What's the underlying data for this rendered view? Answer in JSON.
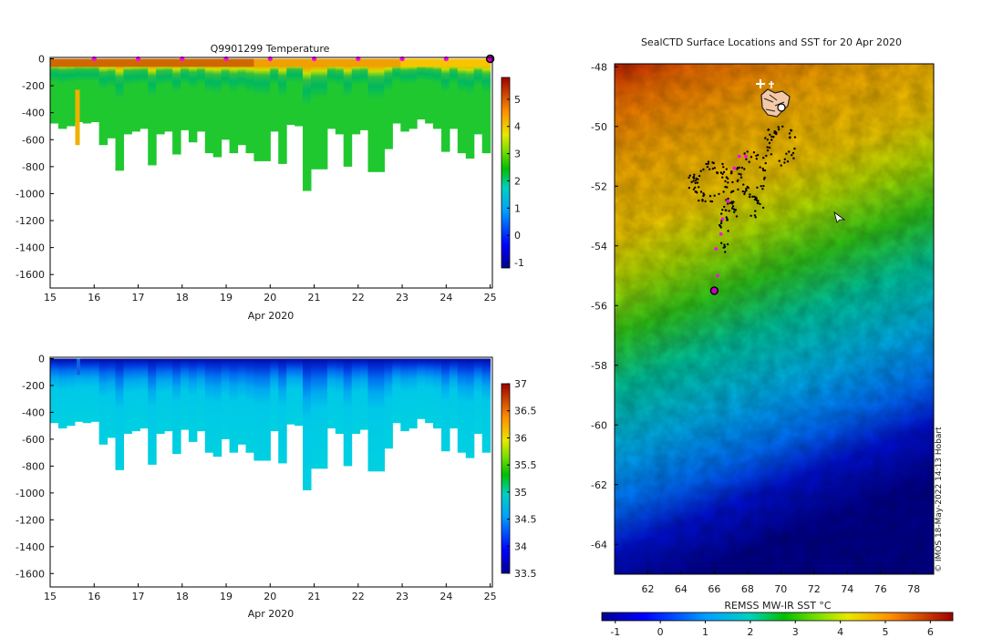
{
  "chart_data": [
    {
      "type": "heatmap",
      "title": "Q9901299  Temperature",
      "xlabel": "Apr 2020",
      "ylabel": "",
      "x_ticks": [
        "15",
        "16",
        "17",
        "18",
        "19",
        "20",
        "21",
        "22",
        "23",
        "24",
        "25"
      ],
      "x_tick_values": [
        15,
        16,
        17,
        18,
        19,
        20,
        21,
        22,
        23,
        24,
        25
      ],
      "xlim": [
        15,
        25.05
      ],
      "y_ticks": [
        "0",
        "-200",
        "-400",
        "-600",
        "-800",
        "-1000",
        "-1200",
        "-1400",
        "-1600"
      ],
      "y_tick_values": [
        0,
        -200,
        -400,
        -600,
        -800,
        -1000,
        -1200,
        -1400,
        -1600
      ],
      "ylim": [
        -1700,
        10
      ],
      "colorbar_ticks": [
        "-1",
        "0",
        "1",
        "2",
        "3",
        "4",
        "5"
      ],
      "colorbar_tick_values": [
        -1,
        0,
        1,
        2,
        3,
        4,
        5
      ],
      "colorbar_range": [
        -1.2,
        5.8
      ],
      "surface_markers_days": [
        16,
        17,
        18,
        19,
        20,
        21,
        22,
        23,
        24
      ],
      "last_marker_day": 25,
      "profile_max_depth_m": [
        480,
        520,
        500,
        470,
        480,
        470,
        640,
        590,
        830,
        560,
        540,
        520,
        790,
        560,
        540,
        710,
        530,
        620,
        540,
        700,
        730,
        600,
        700,
        640,
        700,
        760,
        760,
        540,
        780,
        490,
        500,
        980,
        820,
        820,
        520,
        560,
        800,
        560,
        530,
        840,
        840,
        670,
        480,
        540,
        520,
        450,
        480,
        520,
        690,
        520,
        700,
        740,
        560,
        700
      ]
    },
    {
      "type": "heatmap",
      "title": "",
      "xlabel": "Apr 2020",
      "ylabel": "",
      "x_ticks": [
        "15",
        "16",
        "17",
        "18",
        "19",
        "20",
        "21",
        "22",
        "23",
        "24",
        "25"
      ],
      "x_tick_values": [
        15,
        16,
        17,
        18,
        19,
        20,
        21,
        22,
        23,
        24,
        25
      ],
      "xlim": [
        15,
        25.05
      ],
      "y_ticks": [
        "0",
        "-200",
        "-400",
        "-600",
        "-800",
        "-1000",
        "-1200",
        "-1400",
        "-1600"
      ],
      "y_tick_values": [
        0,
        -200,
        -400,
        -600,
        -800,
        -1000,
        -1200,
        -1400,
        -1600
      ],
      "ylim": [
        -1700,
        10
      ],
      "colorbar_ticks": [
        "37",
        "36.5",
        "36",
        "35.5",
        "35",
        "34.5",
        "34",
        "33.5"
      ],
      "colorbar_tick_values": [
        37,
        36.5,
        36,
        35.5,
        35,
        34.5,
        34,
        33.5
      ],
      "colorbar_range": [
        33.5,
        37.0
      ]
    },
    {
      "type": "heatmap",
      "title": "SealCTD Surface Locations and SST for 20 Apr 2020",
      "xlabel": "",
      "ylabel": "",
      "x_ticks": [
        "62",
        "64",
        "66",
        "68",
        "70",
        "72",
        "74",
        "76",
        "78"
      ],
      "x_tick_values": [
        62,
        64,
        66,
        68,
        70,
        72,
        74,
        76,
        78
      ],
      "xlim": [
        60.0,
        79.2
      ],
      "y_ticks": [
        "-48",
        "-50",
        "-52",
        "-54",
        "-56",
        "-58",
        "-60",
        "-62",
        "-64"
      ],
      "y_tick_values": [
        -48,
        -50,
        -52,
        -54,
        -56,
        -58,
        -60,
        -62,
        -64
      ],
      "ylim": [
        -65.0,
        -47.9
      ],
      "colorbar_label": "REMSS MW-IR SST °C",
      "colorbar_ticks": [
        "-1",
        "0",
        "1",
        "2",
        "3",
        "4",
        "5",
        "6"
      ],
      "colorbar_tick_values": [
        -1,
        0,
        1,
        2,
        3,
        4,
        5,
        6
      ],
      "colorbar_range": [
        -1.3,
        6.5
      ],
      "current_location": [
        66.0,
        -55.5
      ],
      "track_magenta": [
        [
          66.2,
          -55.0
        ],
        [
          66.1,
          -54.1
        ],
        [
          66.4,
          -53.6
        ],
        [
          66.5,
          -53.1
        ],
        [
          66.8,
          -52.5
        ],
        [
          67.2,
          -51.4
        ],
        [
          67.9,
          -51.0
        ],
        [
          67.5,
          -51.0
        ]
      ],
      "credit": "© IMOS 18-May-2022 14:13 Hobart"
    }
  ]
}
